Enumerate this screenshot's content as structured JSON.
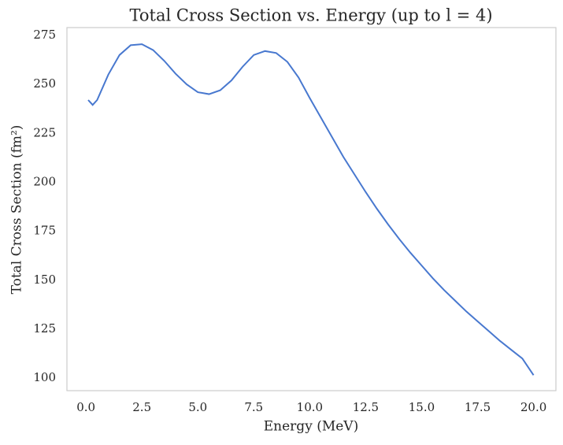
{
  "chart_data": {
    "type": "line",
    "title": "Total Cross Section vs. Energy (up to l = 4)",
    "x_label": "Energy (MeV)",
    "y_label": "Total Cross Section (fm²)",
    "x": [
      0.1,
      0.3,
      0.5,
      1.0,
      1.5,
      2.0,
      2.5,
      3.0,
      3.5,
      4.0,
      4.5,
      5.0,
      5.5,
      6.0,
      6.5,
      7.0,
      7.5,
      8.0,
      8.5,
      9.0,
      9.5,
      10.0,
      10.5,
      11.0,
      11.5,
      12.0,
      12.5,
      13.0,
      13.5,
      14.0,
      14.5,
      15.0,
      15.5,
      16.0,
      16.5,
      17.0,
      17.5,
      18.0,
      18.5,
      19.0,
      19.5,
      20.0
    ],
    "series": [
      {
        "color": "#4878cf",
        "values": [
          242,
          239.5,
          242,
          255,
          265,
          270,
          270.5,
          267.5,
          262,
          255.5,
          250,
          246,
          245,
          247,
          252,
          259,
          265,
          267,
          266,
          261.5,
          253.5,
          243,
          233,
          223,
          213,
          204,
          195,
          186.5,
          178.5,
          171,
          164,
          157.5,
          151,
          145,
          139.5,
          134,
          129,
          124,
          119,
          114.5,
          110,
          101.5
        ]
      }
    ],
    "xlim": [
      -0.85,
      21.0
    ],
    "ylim": [
      93.6,
      279.0
    ],
    "xticks": [
      {
        "value": 0,
        "label": "0.0"
      },
      2.5,
      {
        "value": 5,
        "label": "5.0"
      },
      7.5,
      {
        "value": 10,
        "label": "10.0"
      },
      12.5,
      {
        "value": 15,
        "label": "15.0"
      },
      17.5,
      {
        "value": 20,
        "label": "20.0"
      }
    ],
    "yticks": [
      100,
      125,
      150,
      175,
      200,
      225,
      250,
      275
    ],
    "grid": false
  }
}
